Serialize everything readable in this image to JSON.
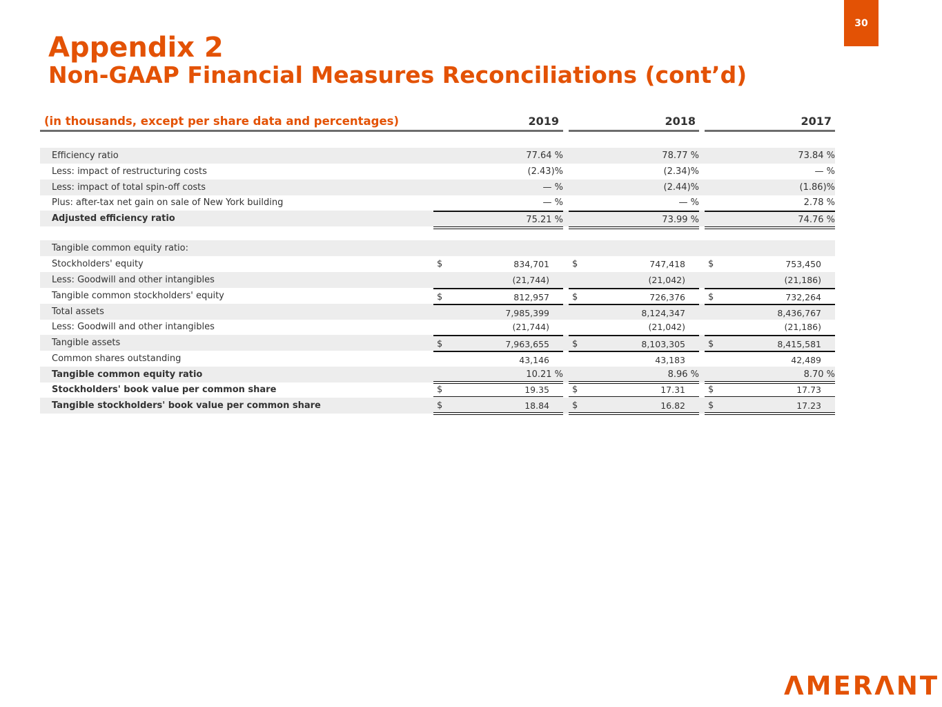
{
  "page_number": "30",
  "title": "Appendix 2",
  "subtitle": "Non-GAAP Financial Measures Reconciliations (cont’d)",
  "table": {
    "unit_label": "(in thousands, except per share data and percentages)",
    "columns": [
      "2019",
      "2018",
      "2017"
    ],
    "rows": [
      {
        "label": "Efficiency ratio",
        "dollar": false,
        "pct": true,
        "values": [
          "77.64 %",
          "78.77 %",
          "73.84 %"
        ]
      },
      {
        "label": "Less: impact of restructuring costs",
        "dollar": false,
        "pct": true,
        "values": [
          "(2.43)%",
          "(2.34)%",
          "— %"
        ]
      },
      {
        "label": "Less: impact of total spin-off costs",
        "dollar": false,
        "pct": true,
        "values": [
          "— %",
          "(2.44)%",
          "(1.86)%"
        ]
      },
      {
        "label": "Plus: after-tax net gain on sale of New York building",
        "dollar": false,
        "pct": true,
        "values": [
          "— %",
          "— %",
          "2.78 %"
        ]
      },
      {
        "label": "Adjusted efficiency ratio",
        "bold": true,
        "dollar": false,
        "pct": true,
        "values": [
          "75.21 %",
          "73.99 %",
          "74.76 %"
        ]
      },
      {
        "label": "Tangible common equity ratio:",
        "values": [
          "",
          "",
          ""
        ]
      },
      {
        "label": "Stockholders' equity",
        "dollar": true,
        "values": [
          "834,701",
          "747,418",
          "753,450"
        ]
      },
      {
        "label": "Less: Goodwill and other intangibles",
        "values": [
          "(21,744)",
          "(21,042)",
          "(21,186)"
        ]
      },
      {
        "label": "Tangible common stockholders' equity",
        "dollar": true,
        "values": [
          "812,957",
          "726,376",
          "732,264"
        ]
      },
      {
        "label": "Total assets",
        "values": [
          "7,985,399",
          "8,124,347",
          "8,436,767"
        ]
      },
      {
        "label": "Less: Goodwill and other intangibles",
        "values": [
          "(21,744)",
          "(21,042)",
          "(21,186)"
        ]
      },
      {
        "label": "Tangible assets",
        "dollar": true,
        "values": [
          "7,963,655",
          "8,103,305",
          "8,415,581"
        ]
      },
      {
        "label": "Common shares outstanding",
        "values": [
          "43,146",
          "43,183",
          "42,489"
        ]
      },
      {
        "label": "Tangible common equity ratio",
        "bold": true,
        "pct": true,
        "values": [
          "10.21 %",
          "8.96 %",
          "8.70 %"
        ]
      },
      {
        "label": "Stockholders' book value per common share",
        "bold": true,
        "dollar": true,
        "values": [
          "19.35",
          "17.31",
          "17.73"
        ]
      },
      {
        "label": "Tangible stockholders' book value per common share",
        "bold": true,
        "dollar": true,
        "values": [
          "18.84",
          "16.82",
          "17.23"
        ]
      }
    ],
    "currency_symbol": "$"
  },
  "logo_text": "AMERANT",
  "colors": {
    "brand": "#e35205",
    "shade": "#ededed"
  }
}
